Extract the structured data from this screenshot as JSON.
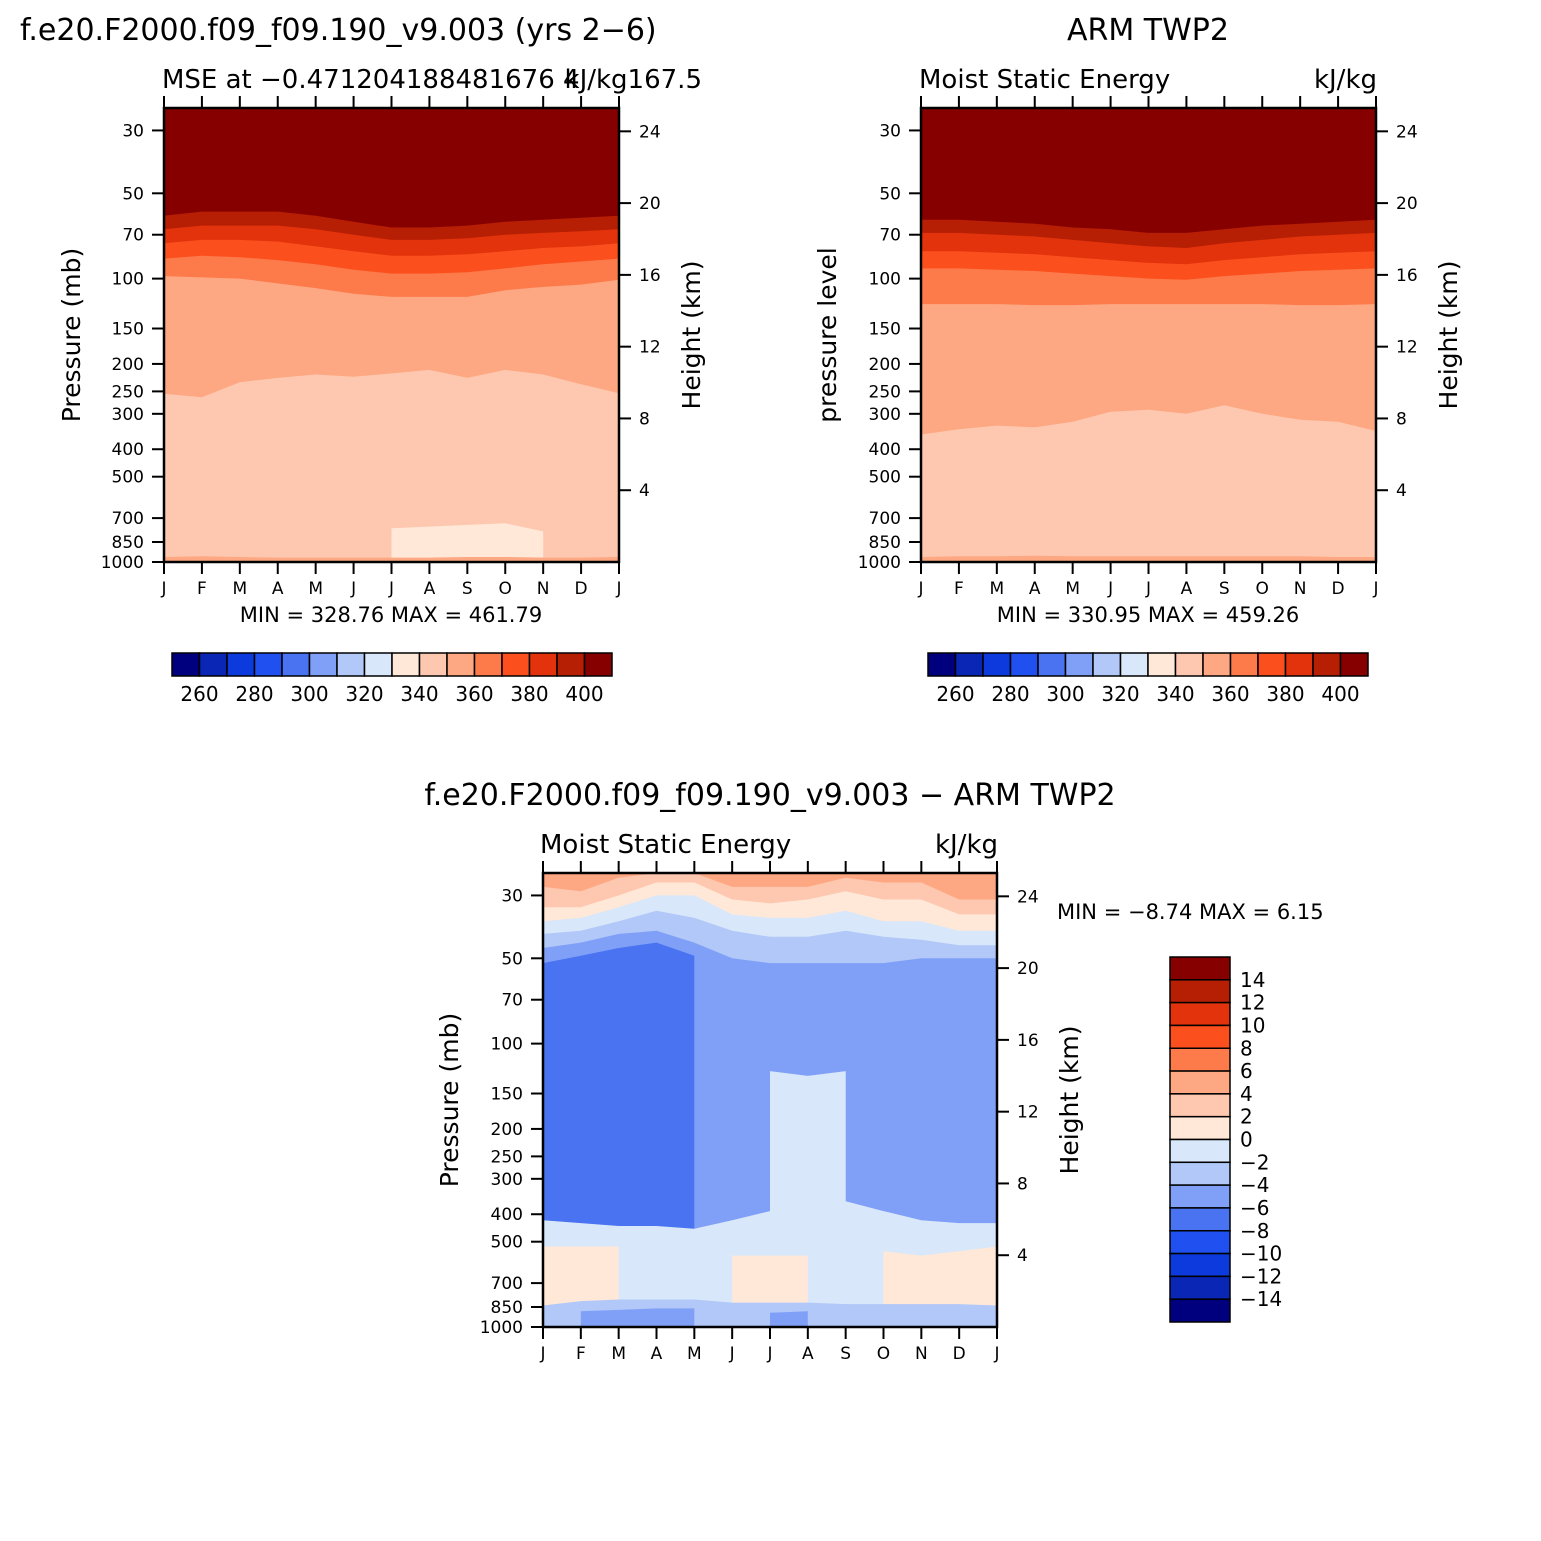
{
  "chart_data": [
    {
      "type": "heatmap",
      "title": "f.e20.F2000.f09_f09.190_v9.003 (yrs 2−6)",
      "subtitle_left": "MSE at −0.471204188481676 4",
      "subtitle_right": "kJ/kg167.5",
      "ylabel": "Pressure (mb)",
      "ylabel_right": "Height (km)",
      "x_ticks": [
        "J",
        "F",
        "M",
        "A",
        "M",
        "J",
        "J",
        "A",
        "S",
        "O",
        "N",
        "D",
        "J"
      ],
      "y_ticks": [
        30,
        50,
        70,
        100,
        150,
        200,
        250,
        300,
        400,
        500,
        700,
        850,
        1000
      ],
      "y_ticks_right": [
        24,
        20,
        16,
        12,
        8,
        4
      ],
      "ylim": [
        1000,
        25
      ],
      "log_y": true,
      "min_max_text": "MIN =  328.76  MAX =  461.79",
      "levels": [
        250,
        260,
        270,
        280,
        290,
        300,
        310,
        320,
        330,
        340,
        350,
        360,
        370,
        380,
        390,
        400
      ],
      "colorbar_labels": [
        "260",
        "280",
        "300",
        "320",
        "340",
        "360",
        "380",
        "400"
      ],
      "fields": [
        {
          "value": 450,
          "top_pressure": [
            25,
            25,
            25,
            25,
            25,
            25,
            25,
            25,
            25,
            25,
            25,
            25,
            25
          ]
        },
        {
          "value": 395,
          "top_pressure": [
            53,
            51,
            51,
            51,
            53,
            56,
            58,
            58,
            57,
            56,
            55,
            54,
            53
          ]
        },
        {
          "value": 385,
          "top_pressure": [
            60,
            58,
            58,
            58,
            60,
            63,
            66,
            66,
            65,
            63,
            62,
            61,
            60
          ]
        },
        {
          "value": 375,
          "top_pressure": [
            67,
            65,
            65,
            65,
            67,
            70,
            73,
            73,
            72,
            70,
            69,
            68,
            67
          ]
        },
        {
          "value": 365,
          "top_pressure": [
            75,
            73,
            73,
            74,
            77,
            80,
            83,
            83,
            82,
            80,
            78,
            77,
            75
          ]
        },
        {
          "value": 355,
          "top_pressure": [
            85,
            83,
            84,
            86,
            89,
            93,
            96,
            96,
            95,
            92,
            89,
            87,
            85
          ]
        },
        {
          "value": 345,
          "top_pressure": [
            98,
            99,
            100,
            104,
            108,
            113,
            116,
            116,
            116,
            110,
            107,
            105,
            101
          ]
        },
        {
          "value": 335,
          "top_pressure": [
            255,
            262,
            232,
            224,
            218,
            222,
            216,
            210,
            224,
            210,
            218,
            236,
            254
          ]
        },
        {
          "value": 325,
          "top_pressure": [
            null,
            null,
            null,
            null,
            null,
            null,
            760,
            750,
            740,
            730,
            780,
            null,
            null
          ]
        },
        {
          "value": 345,
          "top_pressure": [
            960,
            955,
            960,
            965,
            965,
            965,
            965,
            965,
            960,
            960,
            965,
            965,
            960
          ]
        }
      ]
    },
    {
      "type": "heatmap",
      "title": "ARM TWP2",
      "subtitle_left": "Moist Static Energy",
      "subtitle_right": "kJ/kg",
      "ylabel": "pressure level",
      "ylabel_right": "Height (km)",
      "x_ticks": [
        "J",
        "F",
        "M",
        "A",
        "M",
        "J",
        "J",
        "A",
        "S",
        "O",
        "N",
        "D",
        "J"
      ],
      "y_ticks": [
        30,
        50,
        70,
        100,
        150,
        200,
        250,
        300,
        400,
        500,
        700,
        850,
        1000
      ],
      "y_ticks_right": [
        24,
        20,
        16,
        12,
        8,
        4
      ],
      "ylim": [
        1000,
        25
      ],
      "log_y": true,
      "min_max_text": "MIN =  330.95  MAX =  459.26",
      "levels": [
        250,
        260,
        270,
        280,
        290,
        300,
        310,
        320,
        330,
        340,
        350,
        360,
        370,
        380,
        390,
        400
      ],
      "colorbar_labels": [
        "260",
        "280",
        "300",
        "320",
        "340",
        "360",
        "380",
        "400"
      ],
      "fields": [
        {
          "value": 450,
          "top_pressure": [
            25,
            25,
            25,
            25,
            25,
            25,
            25,
            25,
            25,
            25,
            25,
            25,
            25
          ]
        },
        {
          "value": 395,
          "top_pressure": [
            56,
            56,
            57,
            58,
            59,
            60,
            61,
            61,
            60,
            59,
            58,
            57,
            56
          ]
        },
        {
          "value": 385,
          "top_pressure": [
            62,
            62,
            63,
            64,
            66,
            67,
            69,
            69,
            67,
            65,
            64,
            63,
            62
          ]
        },
        {
          "value": 375,
          "top_pressure": [
            69,
            69,
            70,
            71,
            73,
            75,
            77,
            78,
            75,
            73,
            71,
            70,
            69
          ]
        },
        {
          "value": 365,
          "top_pressure": [
            80,
            80,
            81,
            82,
            84,
            86,
            88,
            89,
            86,
            84,
            82,
            81,
            80
          ]
        },
        {
          "value": 355,
          "top_pressure": [
            92,
            92,
            93,
            94,
            96,
            98,
            100,
            101,
            98,
            96,
            94,
            93,
            92
          ]
        },
        {
          "value": 345,
          "top_pressure": [
            123,
            123,
            123,
            124,
            124,
            123,
            123,
            123,
            123,
            123,
            124,
            124,
            123
          ]
        },
        {
          "value": 335,
          "top_pressure": [
            355,
            340,
            330,
            335,
            320,
            295,
            290,
            300,
            280,
            300,
            315,
            320,
            345
          ]
        },
        {
          "value": 345,
          "top_pressure": [
            960,
            955,
            955,
            950,
            955,
            955,
            955,
            955,
            955,
            955,
            955,
            960,
            960
          ]
        }
      ]
    },
    {
      "type": "heatmap",
      "title": "f.e20.F2000.f09_f09.190_v9.003 − ARM TWP2",
      "subtitle_left": "Moist Static Energy",
      "subtitle_right": "kJ/kg",
      "ylabel": "Pressure (mb)",
      "ylabel_right": "Height (km)",
      "x_ticks": [
        "J",
        "F",
        "M",
        "A",
        "M",
        "J",
        "J",
        "A",
        "S",
        "O",
        "N",
        "D",
        "J"
      ],
      "y_ticks": [
        30,
        50,
        70,
        100,
        150,
        200,
        250,
        300,
        400,
        500,
        700,
        850,
        1000
      ],
      "y_ticks_right": [
        24,
        20,
        16,
        12,
        8,
        4
      ],
      "ylim": [
        1000,
        25
      ],
      "log_y": true,
      "min_max_text": "MIN =   −8.74  MAX =     6.15",
      "levels": [
        -14,
        -12,
        -10,
        -8,
        -6,
        -4,
        -2,
        0,
        2,
        4,
        6,
        8,
        10,
        12,
        14
      ],
      "colorbar_labels": [
        "14",
        "12",
        "10",
        "8",
        "6",
        "4",
        "2",
        "0",
        "−2",
        "−4",
        "−6",
        "−8",
        "−10",
        "−12",
        "−14"
      ],
      "fields": [
        {
          "value": 5,
          "top_pressure": [
            25,
            25,
            25,
            25,
            25,
            25,
            25,
            25,
            25,
            25,
            25,
            25,
            25
          ]
        },
        {
          "value": 3,
          "top_pressure": [
            28,
            29,
            26,
            25,
            25,
            28,
            28,
            28,
            26,
            27,
            27,
            31,
            31
          ]
        },
        {
          "value": 1,
          "top_pressure": [
            33,
            33,
            30,
            27,
            27,
            31,
            32,
            31,
            29,
            31,
            31,
            35,
            35
          ]
        },
        {
          "value": -1,
          "top_pressure": [
            37,
            36,
            33,
            30,
            30,
            35,
            36,
            36,
            34,
            37,
            37,
            40,
            40
          ]
        },
        {
          "value": -3,
          "top_pressure": [
            41,
            40,
            37,
            34,
            36,
            40,
            42,
            42,
            40,
            42,
            43,
            45,
            45
          ]
        },
        {
          "value": -5,
          "top_pressure": [
            46,
            44,
            41,
            40,
            44,
            50,
            52,
            52,
            52,
            52,
            50,
            50,
            50
          ]
        },
        {
          "value": -7,
          "top_pressure": [
            52,
            49,
            46,
            44,
            49,
            null,
            null,
            null,
            null,
            null,
            null,
            null,
            65
          ]
        },
        {
          "value": -1,
          "top_pressure": [
            null,
            null,
            null,
            null,
            null,
            null,
            125,
            130,
            125,
            null,
            null,
            null,
            null
          ]
        },
        {
          "value": -1,
          "top_pressure": [
            420,
            430,
            440,
            440,
            450,
            420,
            390,
            390,
            360,
            390,
            420,
            430,
            430
          ]
        },
        {
          "value": 1,
          "top_pressure": [
            520,
            520,
            520,
            null,
            null,
            560,
            560,
            560,
            null,
            540,
            560,
            540,
            520
          ]
        },
        {
          "value": -3,
          "top_pressure": [
            840,
            810,
            800,
            800,
            800,
            820,
            820,
            820,
            830,
            830,
            830,
            830,
            840
          ]
        },
        {
          "value": -5,
          "top_pressure": [
            null,
            880,
            870,
            860,
            860,
            null,
            890,
            880,
            null,
            null,
            890,
            null,
            null
          ]
        }
      ]
    }
  ]
}
